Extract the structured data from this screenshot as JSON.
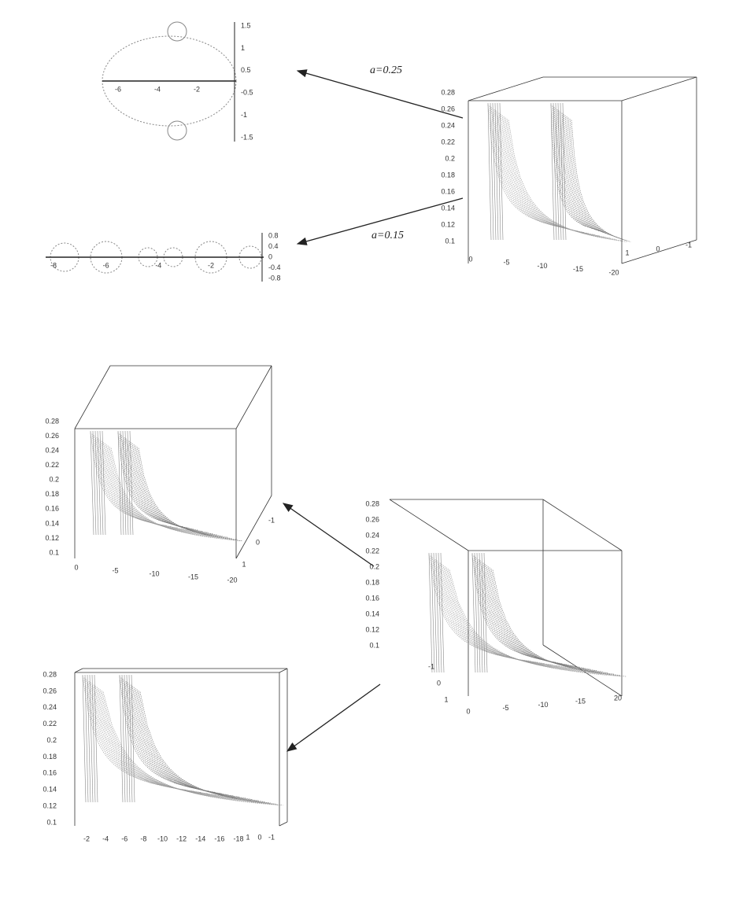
{
  "annotations": [
    "a=0.25",
    "a=0.15"
  ],
  "plots2d": [
    {
      "xticks": [
        "-6",
        "-4",
        "-2"
      ],
      "yticks": [
        "1.5",
        "1",
        "0.5",
        "-0.5",
        "-1",
        "-1.5"
      ]
    },
    {
      "xticks": [
        "-8",
        "-6",
        "-4",
        "-2"
      ],
      "yticks": [
        "0.8",
        "0.4",
        "0",
        "-0.4",
        "-0.8"
      ]
    }
  ],
  "plots3d": [
    {
      "zticks": [
        "0.28",
        "0.26",
        "0.24",
        "0.22",
        "0.2",
        "0.18",
        "0.16",
        "0.14",
        "0.12",
        "0.1"
      ],
      "xticks": [
        "0",
        "-5",
        "-10",
        "-15",
        "-20"
      ],
      "yticks": [
        "1",
        "0",
        "-1"
      ]
    },
    {
      "zticks": [
        "0.28",
        "0.26",
        "0.24",
        "0.22",
        "0.2",
        "0.18",
        "0.16",
        "0.14",
        "0.12",
        "0.1"
      ],
      "xticks": [
        "0",
        "-5",
        "-10",
        "-15",
        "-20"
      ],
      "yticks": [
        "1",
        "0",
        "-1"
      ]
    },
    {
      "zticks": [
        "0.28",
        "0.26",
        "0.24",
        "0.22",
        "0.2",
        "0.18",
        "0.16",
        "0.14",
        "0.12",
        "0.1"
      ],
      "xticks": [
        "0",
        "-5",
        "-10",
        "-15",
        "20"
      ],
      "yticks": [
        "-1",
        "0",
        "1"
      ]
    },
    {
      "zticks": [
        "0.28",
        "0.26",
        "0.24",
        "0.22",
        "0.2",
        "0.18",
        "0.16",
        "0.14",
        "0.12",
        "0.1"
      ],
      "xticks": [
        "-2",
        "-4",
        "-6",
        "-8",
        "-10",
        "-12",
        "-14",
        "-16",
        "-18"
      ],
      "yticks": [
        "1",
        "0",
        "-1"
      ]
    }
  ]
}
